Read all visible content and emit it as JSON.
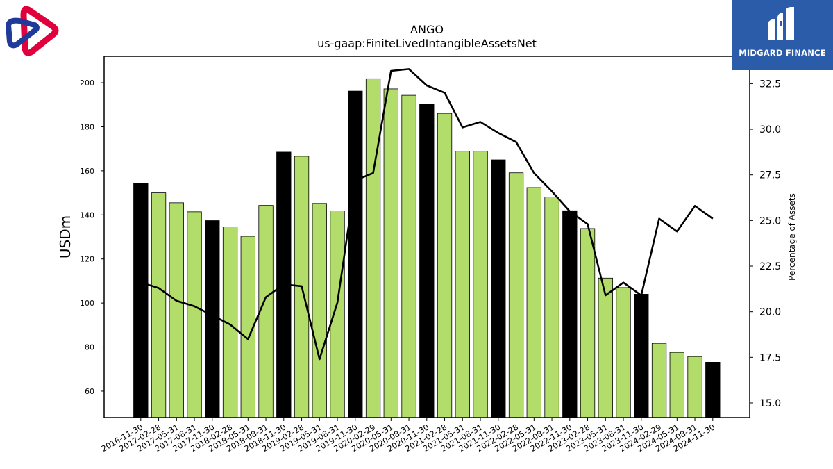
{
  "title": "ANGO",
  "subtitle": "us-gaap:FiniteLivedIntangibleAssetsNet",
  "branding": {
    "name": "MIDGARD FINANCE",
    "brand_color": "#2a5caa"
  },
  "chart_data": {
    "type": "bar",
    "xlabel": "",
    "ylabel": "USDm",
    "y2label": "Percentage of Assets",
    "ylim": [
      48,
      212
    ],
    "y2lim": [
      14.2,
      34.0
    ],
    "yticks": [
      60,
      80,
      100,
      120,
      140,
      160,
      180,
      200
    ],
    "y2ticks": [
      15.0,
      17.5,
      20.0,
      22.5,
      25.0,
      27.5,
      30.0,
      32.5
    ],
    "grid": false,
    "colors": {
      "bar_highlight": "#000000",
      "bar_default": "#b3dd6b",
      "line": "#000000"
    },
    "categories": [
      "2016-11-30",
      "2017-02-28",
      "2017-05-31",
      "2017-08-31",
      "2017-11-30",
      "2018-02-28",
      "2018-05-31",
      "2018-08-31",
      "2018-11-30",
      "2019-02-28",
      "2019-05-31",
      "2019-08-31",
      "2019-11-30",
      "2020-02-29",
      "2020-05-31",
      "2020-08-31",
      "2020-11-30",
      "2021-02-28",
      "2021-05-31",
      "2021-08-31",
      "2021-11-30",
      "2022-02-28",
      "2022-05-31",
      "2022-08-31",
      "2022-11-30",
      "2023-02-28",
      "2023-05-31",
      "2023-08-31",
      "2023-11-30",
      "2024-02-29",
      "2024-05-31",
      "2024-08-31",
      "2024-11-30"
    ],
    "highlight": [
      true,
      false,
      false,
      false,
      true,
      false,
      false,
      false,
      true,
      false,
      false,
      false,
      true,
      false,
      false,
      false,
      true,
      false,
      false,
      false,
      true,
      false,
      false,
      false,
      true,
      false,
      false,
      false,
      true,
      false,
      false,
      false,
      true
    ],
    "series": [
      {
        "type": "bar",
        "axis": "left",
        "values": [
          154.3,
          150.0,
          145.5,
          141.4,
          137.4,
          134.6,
          130.3,
          144.3,
          168.5,
          166.6,
          145.2,
          141.8,
          196.2,
          201.8,
          197.2,
          194.3,
          190.4,
          186.1,
          168.9,
          168.9,
          165.0,
          159.1,
          152.4,
          148.1,
          141.9,
          133.8,
          111.3,
          107.0,
          104.0,
          81.7,
          77.6,
          75.7,
          73.1
        ]
      },
      {
        "type": "line",
        "axis": "right",
        "values": [
          21.6,
          21.3,
          20.6,
          20.3,
          19.8,
          19.3,
          18.5,
          20.8,
          21.5,
          21.4,
          17.4,
          20.5,
          27.2,
          27.6,
          33.2,
          33.3,
          32.4,
          32.0,
          30.1,
          30.4,
          29.8,
          29.3,
          27.6,
          26.6,
          25.5,
          24.8,
          20.9,
          21.6,
          20.9,
          25.1,
          24.4,
          25.8,
          25.1
        ]
      }
    ]
  }
}
